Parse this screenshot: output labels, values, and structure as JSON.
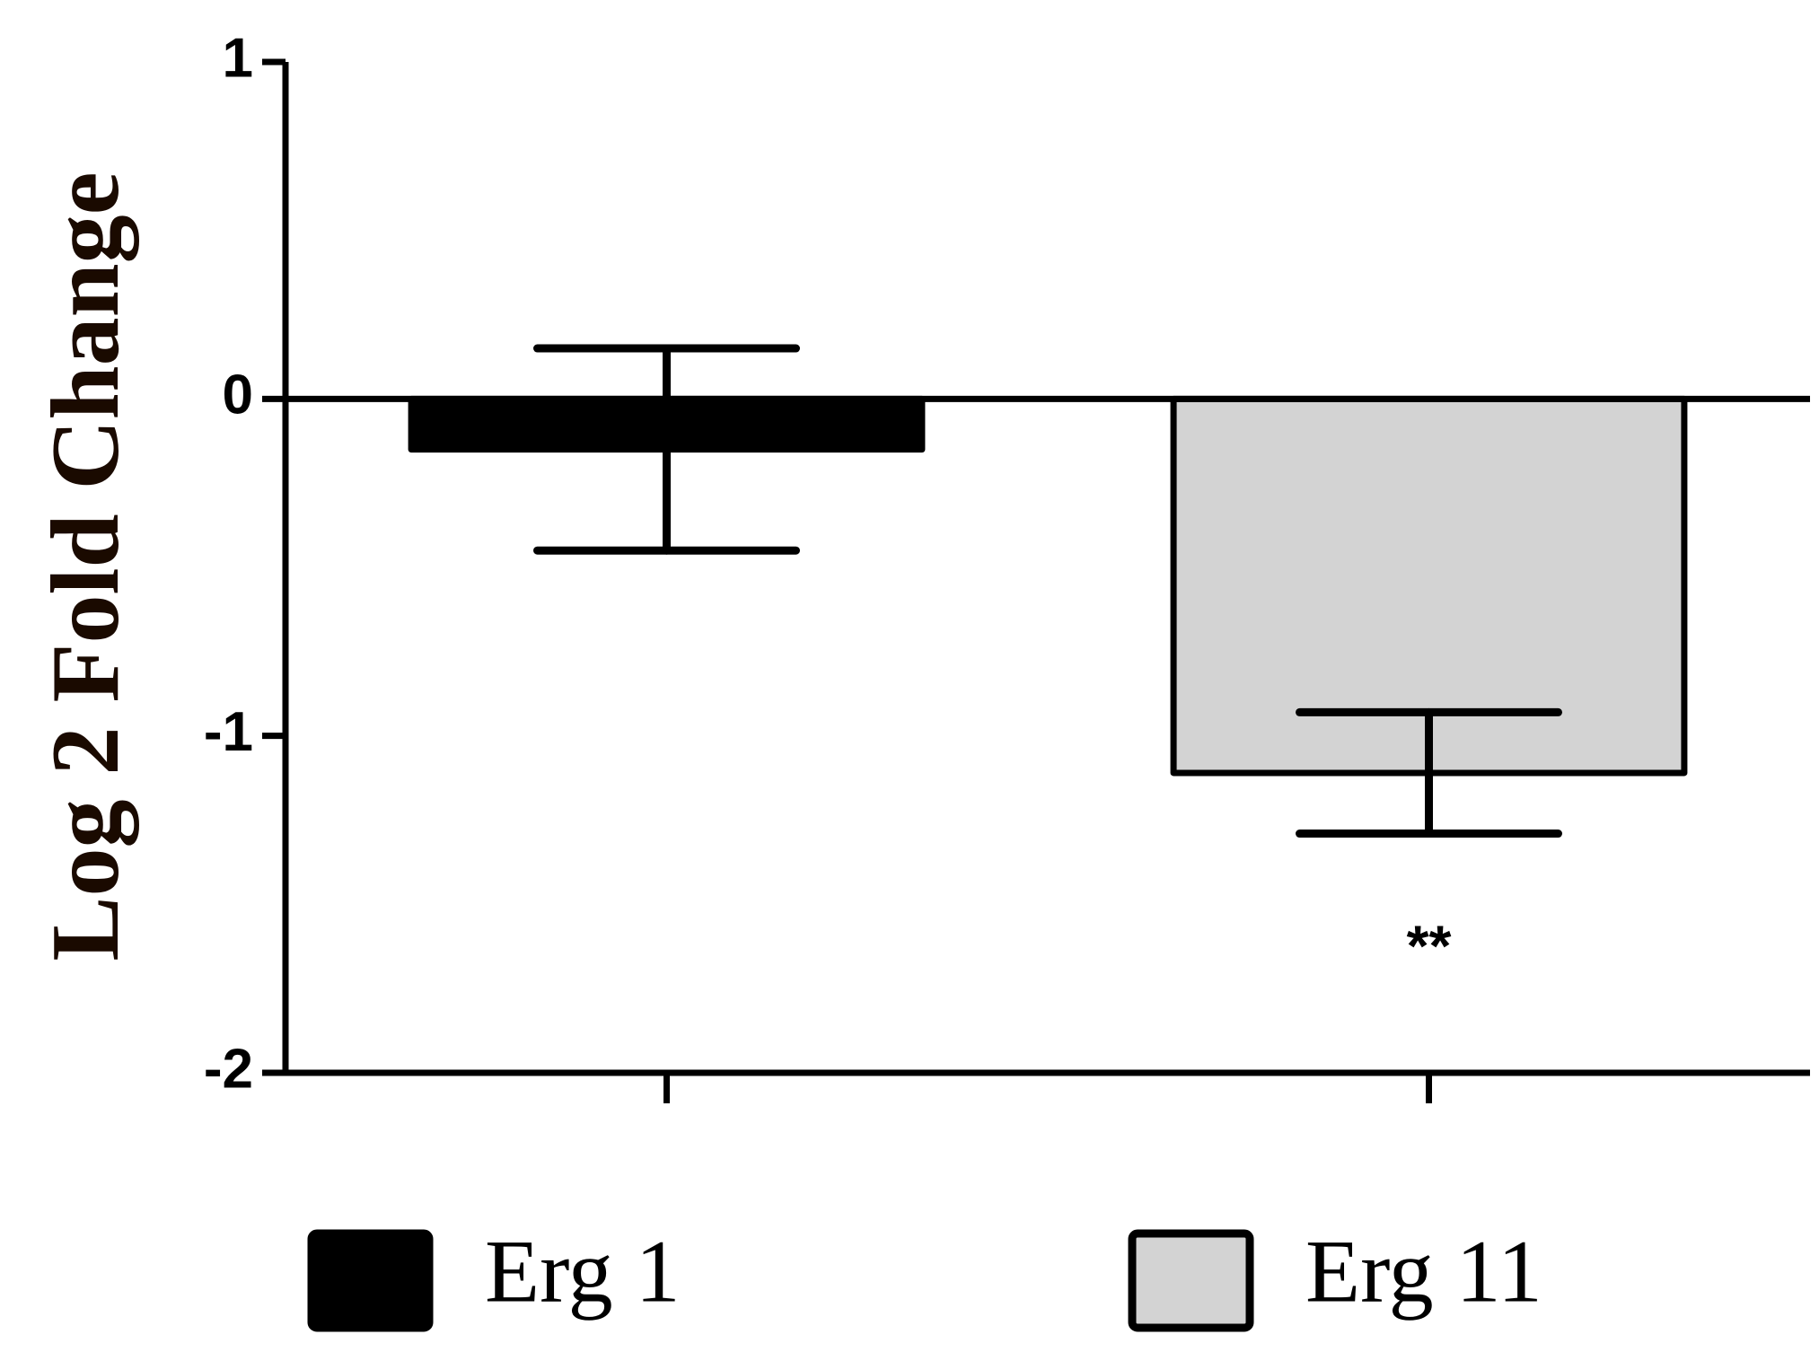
{
  "chart_data": {
    "type": "bar",
    "ylabel": "Log 2 Fold Change",
    "categories": [
      null,
      null
    ],
    "series": [
      {
        "name": "Erg 1",
        "color": "#000000",
        "values": [
          -0.15,
          null
        ],
        "errors": [
          0.3,
          null
        ]
      },
      {
        "name": "Erg 11",
        "color": "#d3d3d3",
        "values": [
          null,
          -1.11
        ],
        "errors": [
          null,
          0.18
        ]
      }
    ],
    "annotation": "**",
    "ylim": [
      -2,
      1
    ],
    "yticks": [
      -2,
      -1,
      0,
      1
    ],
    "grid": false,
    "legend": "bottom"
  }
}
